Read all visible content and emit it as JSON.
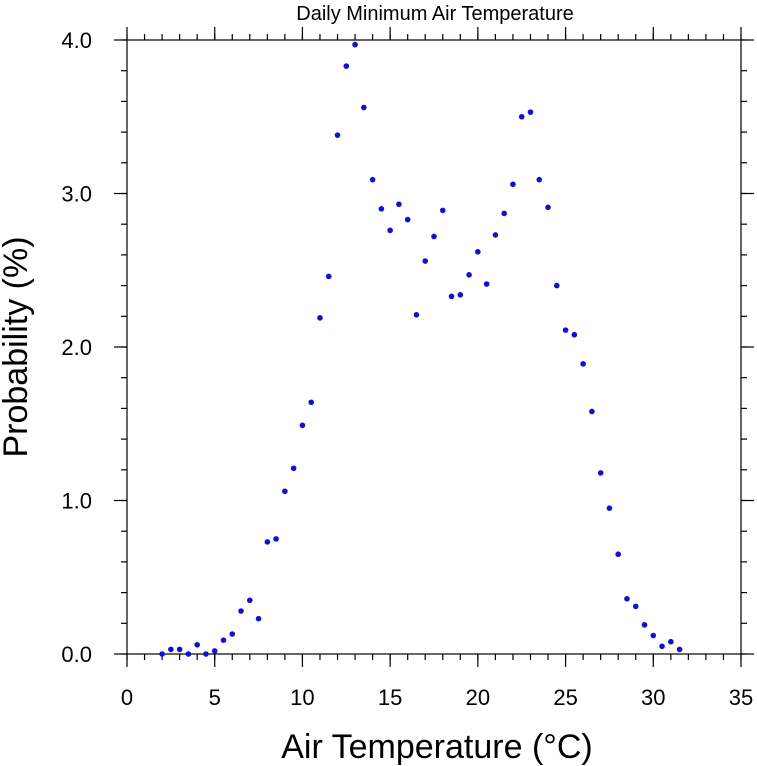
{
  "chart_data": {
    "type": "scatter",
    "title": "Daily Minimum Air Temperature",
    "xlabel": "Air Temperature (°C)",
    "ylabel": "Probability (%)",
    "xlim": [
      0,
      35
    ],
    "ylim": [
      0.0,
      4.0
    ],
    "xticks": [
      "0",
      "5",
      "10",
      "15",
      "20",
      "25",
      "30",
      "35"
    ],
    "yticks": [
      "0.0",
      "1.0",
      "2.0",
      "3.0",
      "4.0"
    ],
    "x_minor_step": 1,
    "y_minor_step": 0.2,
    "grid": false,
    "point_color": "#1010d0",
    "points": [
      [
        2.0,
        0.0
      ],
      [
        2.5,
        0.03
      ],
      [
        3.0,
        0.03
      ],
      [
        3.5,
        0.0
      ],
      [
        4.0,
        0.06
      ],
      [
        4.5,
        0.0
      ],
      [
        5.0,
        0.02
      ],
      [
        5.5,
        0.09
      ],
      [
        6.0,
        0.13
      ],
      [
        6.5,
        0.28
      ],
      [
        7.0,
        0.35
      ],
      [
        7.5,
        0.23
      ],
      [
        8.0,
        0.73
      ],
      [
        8.5,
        0.75
      ],
      [
        9.0,
        1.06
      ],
      [
        9.5,
        1.21
      ],
      [
        10.0,
        1.49
      ],
      [
        10.5,
        1.64
      ],
      [
        11.0,
        2.19
      ],
      [
        11.5,
        2.46
      ],
      [
        12.0,
        3.38
      ],
      [
        12.5,
        3.83
      ],
      [
        13.0,
        3.97
      ],
      [
        13.5,
        3.56
      ],
      [
        14.0,
        3.09
      ],
      [
        14.5,
        2.9
      ],
      [
        15.0,
        2.76
      ],
      [
        15.5,
        2.93
      ],
      [
        16.0,
        2.83
      ],
      [
        16.5,
        2.21
      ],
      [
        17.0,
        2.56
      ],
      [
        17.5,
        2.72
      ],
      [
        18.0,
        2.89
      ],
      [
        18.5,
        2.33
      ],
      [
        19.0,
        2.34
      ],
      [
        19.5,
        2.47
      ],
      [
        20.0,
        2.62
      ],
      [
        20.5,
        2.41
      ],
      [
        21.0,
        2.73
      ],
      [
        21.5,
        2.87
      ],
      [
        22.0,
        3.06
      ],
      [
        22.5,
        3.5
      ],
      [
        23.0,
        3.53
      ],
      [
        23.5,
        3.09
      ],
      [
        24.0,
        2.91
      ],
      [
        24.5,
        2.4
      ],
      [
        25.0,
        2.11
      ],
      [
        25.5,
        2.08
      ],
      [
        26.0,
        1.89
      ],
      [
        26.5,
        1.58
      ],
      [
        27.0,
        1.18
      ],
      [
        27.5,
        0.95
      ],
      [
        28.0,
        0.65
      ],
      [
        28.5,
        0.36
      ],
      [
        29.0,
        0.31
      ],
      [
        29.5,
        0.19
      ],
      [
        30.0,
        0.12
      ],
      [
        30.5,
        0.05
      ],
      [
        31.0,
        0.08
      ],
      [
        31.5,
        0.03
      ]
    ]
  }
}
